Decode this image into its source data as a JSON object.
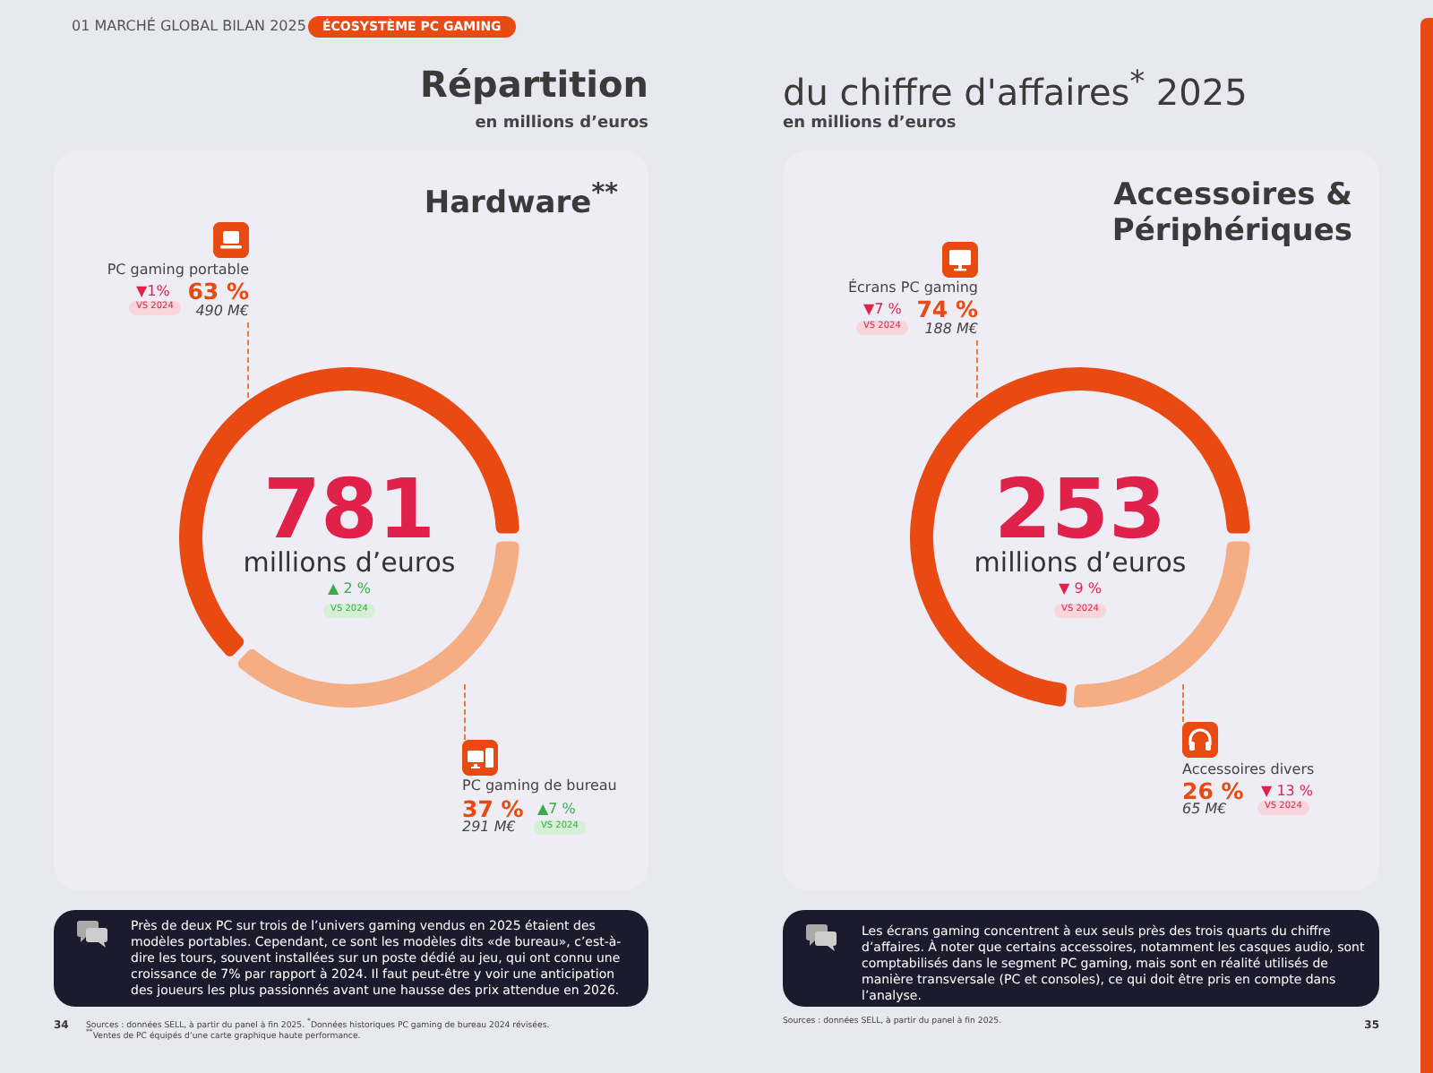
{
  "chart_data": [
    {
      "type": "donut",
      "title": "Répartition",
      "subtitle": "en millions d’euros",
      "categories": [
        "PC gaming portable",
        "PC gaming de bureau"
      ],
      "values": [
        63,
        37
      ],
      "colors": [
        "#e84a12",
        "#f5ad84"
      ],
      "value_labels": [
        "63 %",
        "37 %"
      ],
      "annotations": [
        "01 MARCHÉ GLOBAL BILAN 2025",
        "ÉCOSYSTÈME PC GAMING",
        "Hardware$^{**}$",
        "781",
        "millions d’euros",
        "▲ 2 %",
        "VS 2024",
        "▼1%",
        "VS 2024",
        "490 M€",
        "▲7 %",
        "VS 2024",
        "291 M€",
        "Près de deux PC sur trois de l’univers gaming vendus en 2025 étaient des modèles portables. Cependant, ce sont les modèles dits «de bureau», c’est-à-dire les tours, souvent installées sur un poste dédié au jeu, qui ont connu une croissance de 7% par rapport à 2024. Il faut peut-être y voir une anticipation des joueurs les plus passionnés avant une hausse des prix attendue en 2026.",
        "34",
        "Sources : données SELL, à partir du panel à fin 2025. $^{*}$Données historiques PC gaming de bureau 2024 révisées.",
        "$^{**}$Ventes de PC équipés d’une carte graphique haute performance."
      ]
    },
    {
      "type": "donut",
      "title": "du chiffre d'affaires$^{*}$ 2025",
      "subtitle": "en millions d’euros",
      "categories": [
        "Écrans PC gaming",
        "Accessoires divers"
      ],
      "values": [
        74,
        26
      ],
      "colors": [
        "#e84a12",
        "#f5ad84"
      ],
      "value_labels": [
        "74 %",
        "26 %"
      ],
      "annotations": [
        "Accessoires & Périphériques",
        "253",
        "millions d’euros",
        "▼ 9 %",
        "VS 2024",
        "▼7 %",
        "VS 2024",
        "188 M€",
        "▼ 13 %",
        "VS 2024",
        "65 M€",
        "Les écrans gaming concentrent à eux seuls près des trois quarts du chiffre d’affaires. À noter que certains accessoires, notamment les casques audio, sont comptabilisés dans le segment PC gaming, mais sont en réalité utilisés de manière transversale (PC et consoles), ce qui doit être pris en compte dans l’analyse.",
        "Sources : données SELL, à partir du panel à fin 2025.",
        "35"
      ]
    }
  ]
}
